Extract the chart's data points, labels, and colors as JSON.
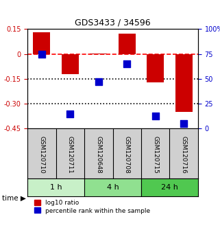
{
  "title": "GDS3433 / 34596",
  "samples": [
    "GSM120710",
    "GSM120711",
    "GSM120648",
    "GSM120708",
    "GSM120715",
    "GSM120716"
  ],
  "log10_ratio": [
    0.13,
    -0.12,
    0.005,
    0.122,
    -0.17,
    -0.35
  ],
  "percentile_rank": [
    75,
    15,
    47,
    65,
    13,
    5
  ],
  "ylim_left": [
    -0.45,
    0.15
  ],
  "ylim_right": [
    0,
    100
  ],
  "yticks_left": [
    0.15,
    0,
    -0.15,
    -0.3,
    -0.45
  ],
  "ytick_labels_left": [
    "0.15",
    "0",
    "-0.15",
    "-0.30",
    "-0.45"
  ],
  "yticks_right": [
    100,
    75,
    50,
    25,
    0
  ],
  "ytick_labels_right": [
    "100%",
    "75",
    "50",
    "25",
    "0"
  ],
  "hlines": [
    0.0,
    -0.15,
    -0.3
  ],
  "hline_styles": [
    "dashed",
    "dotted",
    "dotted"
  ],
  "hline_colors": [
    "red",
    "black",
    "black"
  ],
  "time_groups": [
    {
      "label": "1 h",
      "samples": [
        0,
        1
      ],
      "color": "#c8f0c8"
    },
    {
      "label": "4 h",
      "samples": [
        2,
        3
      ],
      "color": "#90e090"
    },
    {
      "label": "24 h",
      "samples": [
        4,
        5
      ],
      "color": "#50c850"
    }
  ],
  "bar_color": "#cc0000",
  "square_color": "#0000cc",
  "bar_width": 0.6,
  "square_size": 60,
  "left_axis_color": "#cc0000",
  "right_axis_color": "#0000cc",
  "legend_labels": [
    "log10 ratio",
    "percentile rank within the sample"
  ],
  "legend_colors": [
    "#cc0000",
    "#0000cc"
  ],
  "time_label": "time",
  "bg_color": "#ffffff",
  "plot_bg": "#ffffff"
}
